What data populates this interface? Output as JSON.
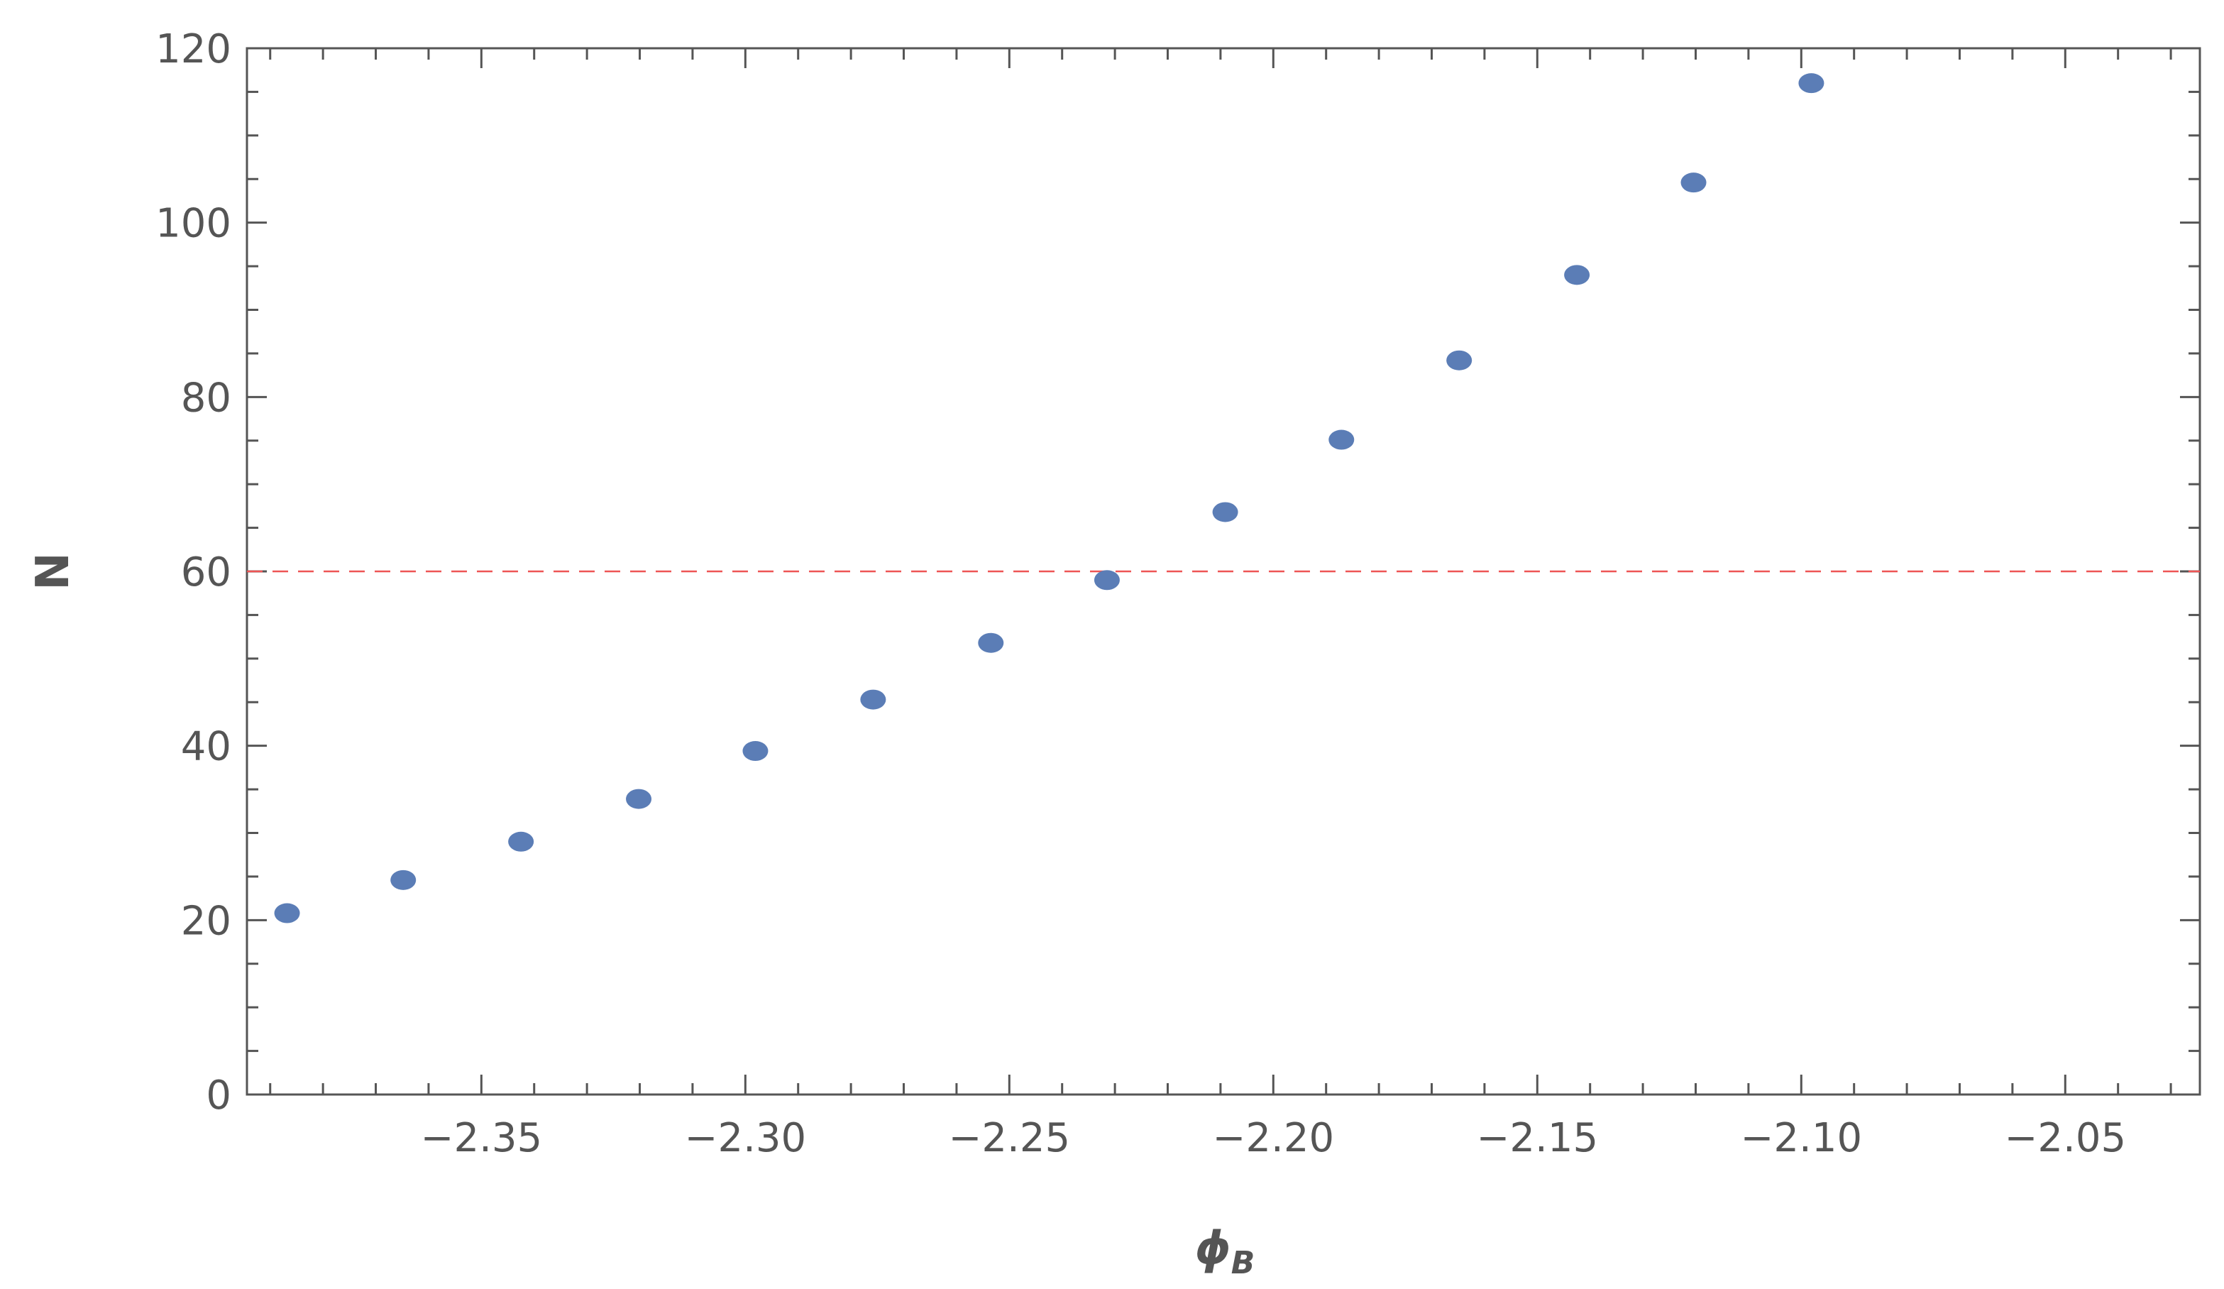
{
  "chart_data": {
    "type": "scatter",
    "xlabel": "ϕ",
    "xlabel_sub": "B",
    "ylabel": "N",
    "x": [
      -2.3868,
      -2.3648,
      -2.3425,
      -2.3202,
      -2.2981,
      -2.2758,
      -2.2535,
      -2.2315,
      -2.2091,
      -2.1871,
      -2.1648,
      -2.1425,
      -2.1204,
      -2.0981
    ],
    "series": [
      {
        "color": "#5b7db6",
        "values": [
          20.8,
          24.6,
          29.0,
          33.9,
          39.4,
          45.3,
          51.8,
          59.0,
          66.8,
          75.1,
          84.2,
          94.0,
          104.6,
          116.0
        ]
      }
    ],
    "xlim": [
      -2.3944,
      -2.0245
    ],
    "ylim": [
      0,
      120
    ],
    "xticks": [
      {
        "value": -2.35,
        "label": "−2.35"
      },
      {
        "value": -2.3,
        "label": "−2.30"
      },
      {
        "value": -2.25,
        "label": "−2.25"
      },
      {
        "value": -2.2,
        "label": "−2.20"
      },
      {
        "value": -2.15,
        "label": "−2.15"
      },
      {
        "value": -2.1,
        "label": "−2.10"
      },
      {
        "value": -2.05,
        "label": "−2.05"
      }
    ],
    "yticks": [
      0,
      20,
      40,
      60,
      80,
      100,
      120
    ],
    "x_minor_ticks": [
      -2.39,
      -2.38,
      -2.37,
      -2.36,
      -2.34,
      -2.33,
      -2.32,
      -2.31,
      -2.29,
      -2.28,
      -2.27,
      -2.26,
      -2.24,
      -2.23,
      -2.22,
      -2.21,
      -2.19,
      -2.18,
      -2.17,
      -2.16,
      -2.14,
      -2.13,
      -2.12,
      -2.11,
      -2.09,
      -2.08,
      -2.07,
      -2.06,
      -2.04,
      -2.03
    ],
    "y_minor_ticks": [
      5,
      10,
      15,
      25,
      30,
      35,
      45,
      50,
      55,
      65,
      70,
      75,
      85,
      90,
      95,
      105,
      110,
      115
    ],
    "hline": 60,
    "hline_color": "#ee5555"
  }
}
